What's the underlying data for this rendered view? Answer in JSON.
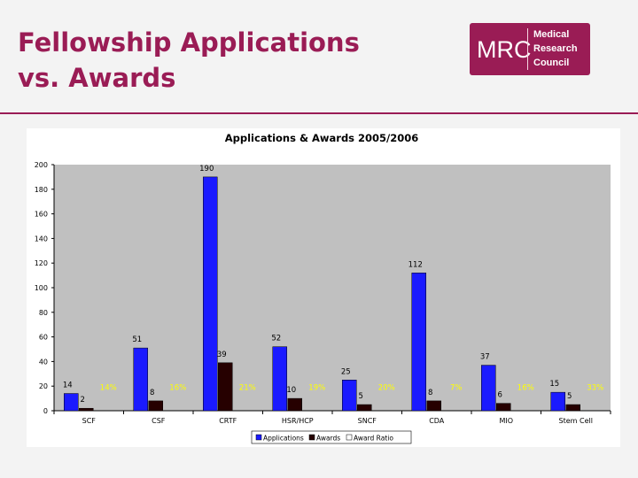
{
  "slide": {
    "title_line1": "Fellowship Applications",
    "title_line2": "vs. Awards"
  },
  "logo": {
    "abbr": "MRC",
    "line1": "Medical",
    "line2": "Research",
    "line3": "Council"
  },
  "colors": {
    "brand": "#9a1c55",
    "applications": "#1a1aff",
    "awards": "#260000",
    "award_ratio": "#ffff00",
    "plot_bg": "#c0c0c0"
  },
  "chart_data": {
    "type": "bar",
    "title": "Applications & Awards 2005/2006",
    "categories": [
      "SCF",
      "CSF",
      "CRTF",
      "HSR/HCP",
      "SNCF",
      "CDA",
      "MIO",
      "Stem Cell"
    ],
    "series": [
      {
        "name": "Applications",
        "values": [
          14,
          51,
          190,
          52,
          25,
          112,
          37,
          15
        ]
      },
      {
        "name": "Awards",
        "values": [
          2,
          8,
          39,
          10,
          5,
          8,
          6,
          5
        ]
      },
      {
        "name": "Award Ratio",
        "labels": [
          "14%",
          "16%",
          "21%",
          "19%",
          "20%",
          "7%",
          "16%",
          "33%"
        ]
      }
    ],
    "ylim": [
      0,
      200
    ],
    "yticks": [
      0,
      20,
      40,
      60,
      80,
      100,
      120,
      140,
      160,
      180,
      200
    ],
    "grid": false,
    "legend_position": "bottom"
  }
}
